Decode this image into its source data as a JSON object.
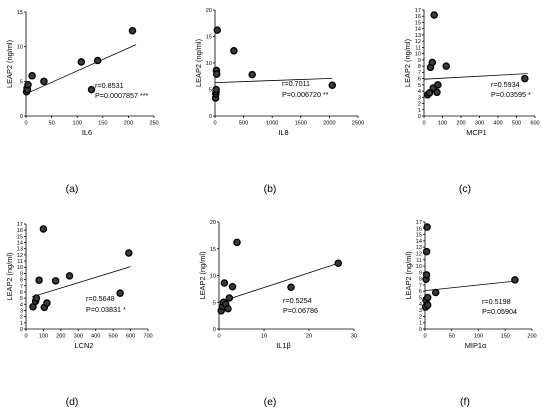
{
  "chart_data": [
    {
      "type": "scatter",
      "panel_label": "(a)",
      "xlabel": "IL6",
      "ylabel": "LEAP2 (ng/ml)",
      "xlim": [
        0,
        250
      ],
      "ylim": [
        0,
        15
      ],
      "xticks": [
        0,
        50,
        100,
        150,
        200,
        250
      ],
      "yticks": [
        0,
        5,
        10,
        15
      ],
      "points": [
        [
          1,
          3.5
        ],
        [
          2,
          4
        ],
        [
          3,
          3.8
        ],
        [
          4,
          4.5
        ],
        [
          12,
          5.8
        ],
        [
          35,
          5
        ],
        [
          108,
          7.8
        ],
        [
          128,
          3.8
        ],
        [
          140,
          8
        ],
        [
          208,
          12.3
        ]
      ],
      "fit_line": {
        "x": [
          0,
          215
        ],
        "y": [
          3.2,
          10.3
        ]
      },
      "stats": {
        "r": "r=0.8531",
        "p": "P=0.0007857",
        "sig": "***"
      }
    },
    {
      "type": "scatter",
      "panel_label": "(b)",
      "xlabel": "IL8",
      "ylabel": "LEAP2 (ng/ml)",
      "xlim": [
        0,
        2500
      ],
      "ylim": [
        0,
        20
      ],
      "xticks": [
        0,
        500,
        1000,
        1500,
        2000,
        2500
      ],
      "yticks": [
        0,
        5,
        10,
        15,
        20
      ],
      "points": [
        [
          10,
          3.4
        ],
        [
          15,
          4.2
        ],
        [
          18,
          4.6
        ],
        [
          20,
          5
        ],
        [
          25,
          8.6
        ],
        [
          30,
          7.9
        ],
        [
          40,
          16.2
        ],
        [
          330,
          12.3
        ],
        [
          650,
          7.8
        ],
        [
          2050,
          5.8
        ]
      ],
      "fit_line": {
        "x": [
          0,
          2050
        ],
        "y": [
          6.3,
          7.1
        ]
      },
      "stats": {
        "r": "r=0.7011",
        "p": "P=0.006720",
        "sig": "**"
      }
    },
    {
      "type": "scatter",
      "panel_label": "(c)",
      "xlabel": "MCP1",
      "ylabel": "LEAP2 (ng/ml)",
      "xlim": [
        0,
        600
      ],
      "ylim": [
        0,
        17
      ],
      "xticks": [
        0,
        100,
        200,
        300,
        400,
        500,
        600
      ],
      "yticks": [
        0,
        1,
        2,
        3,
        4,
        5,
        6,
        7,
        8,
        9,
        10,
        11,
        12,
        13,
        14,
        15,
        16,
        17
      ],
      "points": [
        [
          20,
          3.4
        ],
        [
          30,
          3.7
        ],
        [
          35,
          7.8
        ],
        [
          45,
          8.6
        ],
        [
          50,
          4.5
        ],
        [
          55,
          16.2
        ],
        [
          70,
          3.8
        ],
        [
          75,
          5
        ],
        [
          120,
          8
        ],
        [
          545,
          6
        ]
      ],
      "fit_line": {
        "x": [
          0,
          560
        ],
        "y": [
          5.9,
          6.8
        ]
      },
      "stats": {
        "r": "r=0.5934",
        "p": "P=0.03595",
        "sig": "*"
      }
    },
    {
      "type": "scatter",
      "panel_label": "(d)",
      "xlabel": "LCN2",
      "ylabel": "LEAP2 (ng/ml)",
      "xlim": [
        0,
        700
      ],
      "ylim": [
        0,
        17
      ],
      "xticks": [
        0,
        100,
        200,
        300,
        400,
        500,
        600,
        700
      ],
      "yticks": [
        0,
        1,
        2,
        3,
        4,
        5,
        6,
        7,
        8,
        9,
        10,
        11,
        12,
        13,
        14,
        15,
        16,
        17
      ],
      "points": [
        [
          40,
          3.6
        ],
        [
          55,
          4.5
        ],
        [
          60,
          5
        ],
        [
          75,
          7.9
        ],
        [
          100,
          16.2
        ],
        [
          105,
          3.5
        ],
        [
          120,
          4.2
        ],
        [
          170,
          7.8
        ],
        [
          250,
          8.6
        ],
        [
          540,
          5.8
        ],
        [
          590,
          12.3
        ]
      ],
      "fit_line": {
        "x": [
          35,
          600
        ],
        "y": [
          5.2,
          10.1
        ]
      },
      "stats": {
        "r": "r=0.5648",
        "p": "P=0.03831",
        "sig": "*"
      }
    },
    {
      "type": "scatter",
      "panel_label": "(e)",
      "xlabel": "IL1β",
      "ylabel": "LEAP2 (ng/ml)",
      "xlim": [
        0,
        30
      ],
      "ylim": [
        0,
        20
      ],
      "xticks": [
        0,
        10,
        20,
        30
      ],
      "yticks": [
        0,
        5,
        10,
        15,
        20
      ],
      "points": [
        [
          0.5,
          3.4
        ],
        [
          0.8,
          4.2
        ],
        [
          1,
          5
        ],
        [
          1.2,
          8.6
        ],
        [
          1.5,
          4.6
        ],
        [
          2,
          3.8
        ],
        [
          2.3,
          5.8
        ],
        [
          3,
          7.9
        ],
        [
          4,
          16.2
        ],
        [
          16,
          7.8
        ],
        [
          26.5,
          12.3
        ]
      ],
      "fit_line": {
        "x": [
          0,
          26.5
        ],
        "y": [
          5,
          12.3
        ]
      },
      "stats": {
        "r": "r=0.5254",
        "p": "P=0.06786",
        "sig": ""
      }
    },
    {
      "type": "scatter",
      "panel_label": "(f)",
      "xlabel": "MIP1α",
      "ylabel": "LEAP2 (ng/ml)",
      "xlim": [
        0,
        200
      ],
      "ylim": [
        0,
        17
      ],
      "xticks": [
        0,
        50,
        100,
        150,
        200
      ],
      "yticks": [
        0,
        1,
        2,
        3,
        4,
        5,
        6,
        7,
        8,
        9,
        10,
        11,
        12,
        13,
        14,
        15,
        16,
        17
      ],
      "points": [
        [
          1,
          3.5
        ],
        [
          2,
          4.6
        ],
        [
          2,
          7.9
        ],
        [
          3,
          8.6
        ],
        [
          3,
          12.3
        ],
        [
          4,
          16.2
        ],
        [
          5,
          3.8
        ],
        [
          5,
          5
        ],
        [
          20,
          5.8
        ],
        [
          168,
          7.8
        ]
      ],
      "fit_line": {
        "x": [
          0,
          168
        ],
        "y": [
          6.1,
          7.6
        ]
      },
      "stats": {
        "r": "r=0.5198",
        "p": "P=0.05904",
        "sig": ""
      }
    }
  ]
}
